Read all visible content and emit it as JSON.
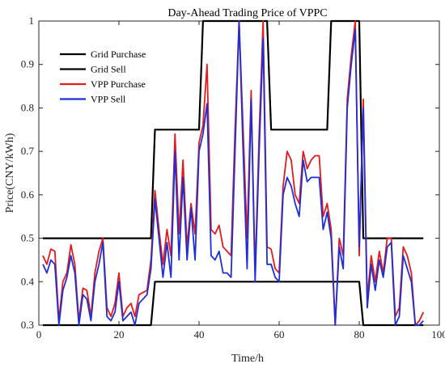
{
  "chart_data": {
    "type": "line",
    "title": "Day-Ahead Trading Price of VPPC",
    "xlabel": "Time/h",
    "ylabel": "Price(CNY/kWh)",
    "xlim": [
      0,
      100
    ],
    "ylim": [
      0.3,
      1.0
    ],
    "xticks": [
      0,
      20,
      40,
      60,
      80,
      100
    ],
    "yticks": [
      0.3,
      0.4,
      0.5,
      0.6,
      0.7,
      0.8,
      0.9,
      1.0
    ],
    "xtick_labels": [
      "0",
      "20",
      "40",
      "60",
      "80",
      "100"
    ],
    "ytick_labels": [
      "0.3",
      "0.4",
      "0.5",
      "0.6",
      "0.7",
      "0.8",
      "0.9",
      "1"
    ],
    "grid": false,
    "legend_position": "top-left",
    "series": [
      {
        "name": "Grid Purchase",
        "color": "#000000",
        "x": [
          1,
          28,
          29,
          40,
          41,
          57,
          58,
          72,
          73,
          80,
          81,
          96
        ],
        "y": [
          0.5,
          0.5,
          0.75,
          0.75,
          1.0,
          1.0,
          0.75,
          0.75,
          1.0,
          1.0,
          0.5,
          0.5
        ]
      },
      {
        "name": "Grid Sell",
        "color": "#000000",
        "x": [
          1,
          28,
          29,
          40,
          41,
          80,
          81,
          96
        ],
        "y": [
          0.3,
          0.3,
          0.4,
          0.4,
          0.4,
          0.4,
          0.3,
          0.3
        ]
      },
      {
        "name": "VPP Purchase",
        "color": "#e41a1c",
        "x": [
          1,
          2,
          3,
          4,
          5,
          6,
          7,
          8,
          9,
          10,
          11,
          12,
          13,
          14,
          15,
          16,
          17,
          18,
          19,
          20,
          21,
          22,
          23,
          24,
          25,
          26,
          27,
          28,
          29,
          30,
          31,
          32,
          33,
          34,
          35,
          36,
          37,
          38,
          39,
          40,
          41,
          42,
          43,
          44,
          45,
          46,
          47,
          48,
          49,
          50,
          51,
          52,
          53,
          54,
          55,
          56,
          57,
          58,
          59,
          60,
          61,
          62,
          63,
          64,
          65,
          66,
          67,
          68,
          69,
          70,
          71,
          72,
          73,
          74,
          75,
          76,
          77,
          78,
          79,
          80,
          81,
          82,
          83,
          84,
          85,
          86,
          87,
          88,
          89,
          90,
          91,
          92,
          93,
          94,
          95,
          96
        ],
        "y": [
          0.46,
          0.44,
          0.475,
          0.47,
          0.31,
          0.4,
          0.42,
          0.485,
          0.44,
          0.31,
          0.385,
          0.38,
          0.32,
          0.42,
          0.47,
          0.5,
          0.34,
          0.32,
          0.35,
          0.42,
          0.32,
          0.34,
          0.35,
          0.32,
          0.37,
          0.375,
          0.38,
          0.45,
          0.61,
          0.52,
          0.44,
          0.52,
          0.46,
          0.74,
          0.51,
          0.68,
          0.48,
          0.58,
          0.51,
          0.72,
          0.76,
          0.9,
          0.52,
          0.51,
          0.53,
          0.48,
          0.47,
          0.46,
          0.75,
          1.0,
          0.75,
          0.5,
          0.84,
          0.42,
          0.74,
          1.0,
          0.48,
          0.475,
          0.43,
          0.42,
          0.62,
          0.7,
          0.68,
          0.6,
          0.58,
          0.7,
          0.66,
          0.68,
          0.69,
          0.69,
          0.55,
          0.58,
          0.52,
          0.3,
          0.5,
          0.46,
          0.82,
          0.92,
          1.0,
          0.46,
          0.82,
          0.36,
          0.46,
          0.4,
          0.47,
          0.42,
          0.5,
          0.5,
          0.32,
          0.34,
          0.48,
          0.46,
          0.42,
          0.3,
          0.31,
          0.33
        ]
      },
      {
        "name": "VPP Sell",
        "color": "#1f2fd6",
        "x": [
          1,
          2,
          3,
          4,
          5,
          6,
          7,
          8,
          9,
          10,
          11,
          12,
          13,
          14,
          15,
          16,
          17,
          18,
          19,
          20,
          21,
          22,
          23,
          24,
          25,
          26,
          27,
          28,
          29,
          30,
          31,
          32,
          33,
          34,
          35,
          36,
          37,
          38,
          39,
          40,
          41,
          42,
          43,
          44,
          45,
          46,
          47,
          48,
          49,
          50,
          51,
          52,
          53,
          54,
          55,
          56,
          57,
          58,
          59,
          60,
          61,
          62,
          63,
          64,
          65,
          66,
          67,
          68,
          69,
          70,
          71,
          72,
          73,
          74,
          75,
          76,
          77,
          78,
          79,
          80,
          81,
          82,
          83,
          84,
          85,
          86,
          87,
          88,
          89,
          90,
          91,
          92,
          93,
          94,
          95,
          96
        ],
        "y": [
          0.44,
          0.42,
          0.45,
          0.44,
          0.3,
          0.38,
          0.41,
          0.46,
          0.42,
          0.3,
          0.37,
          0.36,
          0.31,
          0.4,
          0.44,
          0.49,
          0.32,
          0.31,
          0.33,
          0.4,
          0.31,
          0.32,
          0.33,
          0.3,
          0.35,
          0.36,
          0.37,
          0.43,
          0.59,
          0.5,
          0.41,
          0.49,
          0.41,
          0.7,
          0.45,
          0.64,
          0.45,
          0.57,
          0.45,
          0.7,
          0.74,
          0.81,
          0.46,
          0.45,
          0.47,
          0.42,
          0.42,
          0.41,
          0.7,
          1.0,
          0.7,
          0.43,
          0.82,
          0.4,
          0.7,
          0.96,
          0.44,
          0.44,
          0.41,
          0.4,
          0.6,
          0.64,
          0.62,
          0.58,
          0.55,
          0.68,
          0.63,
          0.64,
          0.64,
          0.64,
          0.52,
          0.56,
          0.5,
          0.3,
          0.48,
          0.43,
          0.8,
          0.9,
          0.98,
          0.48,
          0.8,
          0.34,
          0.44,
          0.38,
          0.45,
          0.41,
          0.48,
          0.49,
          0.3,
          0.32,
          0.46,
          0.43,
          0.4,
          0.3,
          0.3,
          0.31
        ]
      }
    ]
  }
}
